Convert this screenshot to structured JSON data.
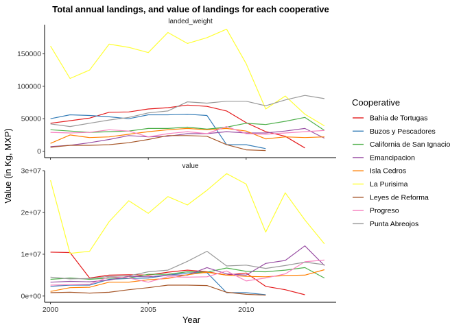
{
  "chart_data": {
    "type": "line",
    "title": "Total annual landings, and value of landings for each cooperative",
    "xlabel": "Year",
    "ylabel": "Value (in Kg, MXP)",
    "legend_title": "Cooperative",
    "legend_position": "right",
    "grid": false,
    "x_ticks": [
      2000,
      2005,
      2010
    ],
    "xlim": [
      1999.7,
      2014.6
    ],
    "panels": [
      {
        "label": "landed_weight",
        "ylim": [
          -10000,
          195000
        ],
        "y_ticks": [
          0,
          50000,
          100000,
          150000
        ],
        "y_tick_labels": [
          "0",
          "50000",
          "100000",
          "150000"
        ],
        "series": [
          {
            "name": "Bahia de Tortugas",
            "color": "#e41a1c",
            "x": [
              2000,
              2001,
              2002,
              2003,
              2004,
              2005,
              2006,
              2007,
              2008,
              2009,
              2010,
              2011,
              2012,
              2013
            ],
            "y": [
              43000,
              47000,
              51000,
              60000,
              60500,
              65000,
              67000,
              71000,
              69000,
              62000,
              44000,
              30000,
              23000,
              5000
            ]
          },
          {
            "name": "Buzos y Pescadores",
            "color": "#377eb8",
            "x": [
              2000,
              2001,
              2002,
              2003,
              2004,
              2005,
              2006,
              2007,
              2008,
              2009,
              2010,
              2011
            ],
            "y": [
              50000,
              56000,
              55000,
              53000,
              50000,
              56000,
              56000,
              57000,
              55000,
              10000,
              10000,
              4000
            ]
          },
          {
            "name": "California de San Ignacio",
            "color": "#4daf4a",
            "x": [
              2000,
              2001,
              2002,
              2003,
              2004,
              2005,
              2006,
              2007,
              2008,
              2009,
              2010,
              2011,
              2012,
              2013,
              2014
            ],
            "y": [
              33000,
              31000,
              29000,
              30000,
              31000,
              35000,
              35000,
              37000,
              34000,
              37000,
              43000,
              41000,
              46000,
              52000,
              32000
            ]
          },
          {
            "name": "Emancipacion",
            "color": "#984ea3",
            "x": [
              2000,
              2001,
              2002,
              2003,
              2004,
              2005,
              2006,
              2007,
              2008,
              2009,
              2010,
              2011,
              2012,
              2013,
              2014
            ],
            "y": [
              7000,
              9000,
              13000,
              18000,
              24000,
              22000,
              23000,
              27000,
              27000,
              30000,
              28000,
              28000,
              31000,
              35000,
              20000
            ]
          },
          {
            "name": "Isla Cedros",
            "color": "#ff7f00",
            "x": [
              2000,
              2001,
              2002,
              2003,
              2004,
              2005,
              2006,
              2007,
              2008,
              2009,
              2010,
              2011,
              2012,
              2013,
              2014
            ],
            "y": [
              12000,
              25000,
              21000,
              22000,
              26000,
              30000,
              33000,
              35000,
              33000,
              35000,
              31000,
              19000,
              22000,
              21000,
              22000
            ]
          },
          {
            "name": "La Purisima",
            "color": "#ffff33",
            "x": [
              2000,
              2001,
              2002,
              2003,
              2004,
              2005,
              2006,
              2007,
              2008,
              2009,
              2010,
              2011,
              2012,
              2013,
              2014
            ],
            "y": [
              162000,
              112000,
              125000,
              165000,
              160000,
              152000,
              183000,
              166000,
              175000,
              188000,
              135000,
              65000,
              85000,
              57000,
              39000
            ]
          },
          {
            "name": "Leyes de Reforma",
            "color": "#a65628",
            "x": [
              2000,
              2001,
              2002,
              2003,
              2004,
              2005,
              2006,
              2007,
              2008,
              2009,
              2010,
              2011
            ],
            "y": [
              6000,
              9000,
              9000,
              10000,
              13000,
              18000,
              24000,
              24000,
              23000,
              10000,
              2000,
              1000
            ]
          },
          {
            "name": "Progreso",
            "color": "#f781bf",
            "x": [
              2000,
              2001,
              2002,
              2003,
              2004,
              2005,
              2006,
              2007,
              2008,
              2009,
              2010,
              2011,
              2012,
              2013,
              2014
            ],
            "y": [
              29000,
              28000,
              29000,
              33000,
              31000,
              22000,
              27000,
              30000,
              27000,
              38000,
              27000,
              26000,
              28000,
              30000,
              32000
            ]
          },
          {
            "name": "Punta Abreojos",
            "color": "#999999",
            "x": [
              2000,
              2001,
              2002,
              2003,
              2004,
              2005,
              2006,
              2007,
              2008,
              2009,
              2010,
              2011,
              2012,
              2013,
              2014
            ],
            "y": [
              42000,
              38000,
              43000,
              48000,
              52000,
              59000,
              62000,
              76000,
              74000,
              77000,
              77000,
              70000,
              79000,
              86000,
              81000
            ]
          }
        ]
      },
      {
        "label": "value",
        "ylim": [
          -1500000,
          30000000
        ],
        "y_ticks": [
          0,
          10000000,
          20000000,
          30000000
        ],
        "y_tick_labels": [
          "0e+00",
          "1e+07",
          "2e+07",
          "3e+07"
        ],
        "series": [
          {
            "name": "Bahia de Tortugas",
            "color": "#e41a1c",
            "x": [
              2000,
              2001,
              2002,
              2003,
              2004,
              2005,
              2006,
              2007,
              2008,
              2009,
              2010,
              2011,
              2012,
              2013
            ],
            "y": [
              10500000,
              10400000,
              4300000,
              5000000,
              5100000,
              5000000,
              5700000,
              6200000,
              5800000,
              5000000,
              5500000,
              2300000,
              1500000,
              300000
            ]
          },
          {
            "name": "Buzos y Pescadores",
            "color": "#377eb8",
            "x": [
              2000,
              2001,
              2002,
              2003,
              2004,
              2005,
              2006,
              2007,
              2008,
              2009,
              2010,
              2011
            ],
            "y": [
              2300000,
              2600000,
              2600000,
              4000000,
              4200000,
              4300000,
              5000000,
              5500000,
              5600000,
              800000,
              800000,
              300000
            ]
          },
          {
            "name": "California de San Ignacio",
            "color": "#4daf4a",
            "x": [
              2000,
              2001,
              2002,
              2003,
              2004,
              2005,
              2006,
              2007,
              2008,
              2009,
              2010,
              2011,
              2012,
              2013,
              2014
            ],
            "y": [
              4000000,
              4300000,
              4000000,
              4300000,
              4300000,
              5200000,
              5200000,
              5800000,
              5700000,
              6700000,
              5900000,
              5800000,
              6200000,
              6800000,
              4300000
            ]
          },
          {
            "name": "Emancipacion",
            "color": "#984ea3",
            "x": [
              2000,
              2001,
              2002,
              2003,
              2004,
              2005,
              2006,
              2007,
              2008,
              2009,
              2010,
              2011,
              2012,
              2013,
              2014
            ],
            "y": [
              3300000,
              3500000,
              3400000,
              3800000,
              4700000,
              4600000,
              5000000,
              5000000,
              6800000,
              5300000,
              5000000,
              7800000,
              8500000,
              12000000,
              7300000
            ]
          },
          {
            "name": "Isla Cedros",
            "color": "#ff7f00",
            "x": [
              2000,
              2001,
              2002,
              2003,
              2004,
              2005,
              2006,
              2007,
              2008,
              2009,
              2010,
              2011,
              2012,
              2013,
              2014
            ],
            "y": [
              1100000,
              2000000,
              2100000,
              3300000,
              3300000,
              3900000,
              4200000,
              5100000,
              5700000,
              5000000,
              4700000,
              4600000,
              4900000,
              5000000,
              6300000
            ]
          },
          {
            "name": "La Purisima",
            "color": "#ffff33",
            "x": [
              2000,
              2001,
              2002,
              2003,
              2004,
              2005,
              2006,
              2007,
              2008,
              2009,
              2010,
              2011,
              2012,
              2013,
              2014
            ],
            "y": [
              27700000,
              10200000,
              10700000,
              17800000,
              22800000,
              19800000,
              23800000,
              21800000,
              25300000,
              29300000,
              26800000,
              15300000,
              24700000,
              18200000,
              12500000
            ]
          },
          {
            "name": "Leyes de Reforma",
            "color": "#a65628",
            "x": [
              2000,
              2001,
              2002,
              2003,
              2004,
              2005,
              2006,
              2007,
              2008,
              2009,
              2010,
              2011
            ],
            "y": [
              800000,
              900000,
              700000,
              900000,
              1500000,
              2000000,
              2600000,
              2600000,
              2500000,
              900000,
              400000,
              200000
            ]
          },
          {
            "name": "Progreso",
            "color": "#f781bf",
            "x": [
              2000,
              2001,
              2002,
              2003,
              2004,
              2005,
              2006,
              2007,
              2008,
              2009,
              2010,
              2011,
              2012,
              2013,
              2014
            ],
            "y": [
              2600000,
              2700000,
              2800000,
              4600000,
              4300000,
              3300000,
              4600000,
              4500000,
              4600000,
              6000000,
              3600000,
              4300000,
              5300000,
              8200000,
              8600000
            ]
          },
          {
            "name": "Punta Abreojos",
            "color": "#999999",
            "x": [
              2000,
              2001,
              2002,
              2003,
              2004,
              2005,
              2006,
              2007,
              2008,
              2009,
              2010,
              2011,
              2012,
              2013,
              2014
            ],
            "y": [
              4500000,
              4100000,
              4200000,
              4700000,
              4800000,
              5800000,
              6200000,
              8300000,
              10700000,
              7200000,
              7400000,
              6600000,
              7300000,
              8100000,
              7500000
            ]
          }
        ]
      }
    ]
  }
}
